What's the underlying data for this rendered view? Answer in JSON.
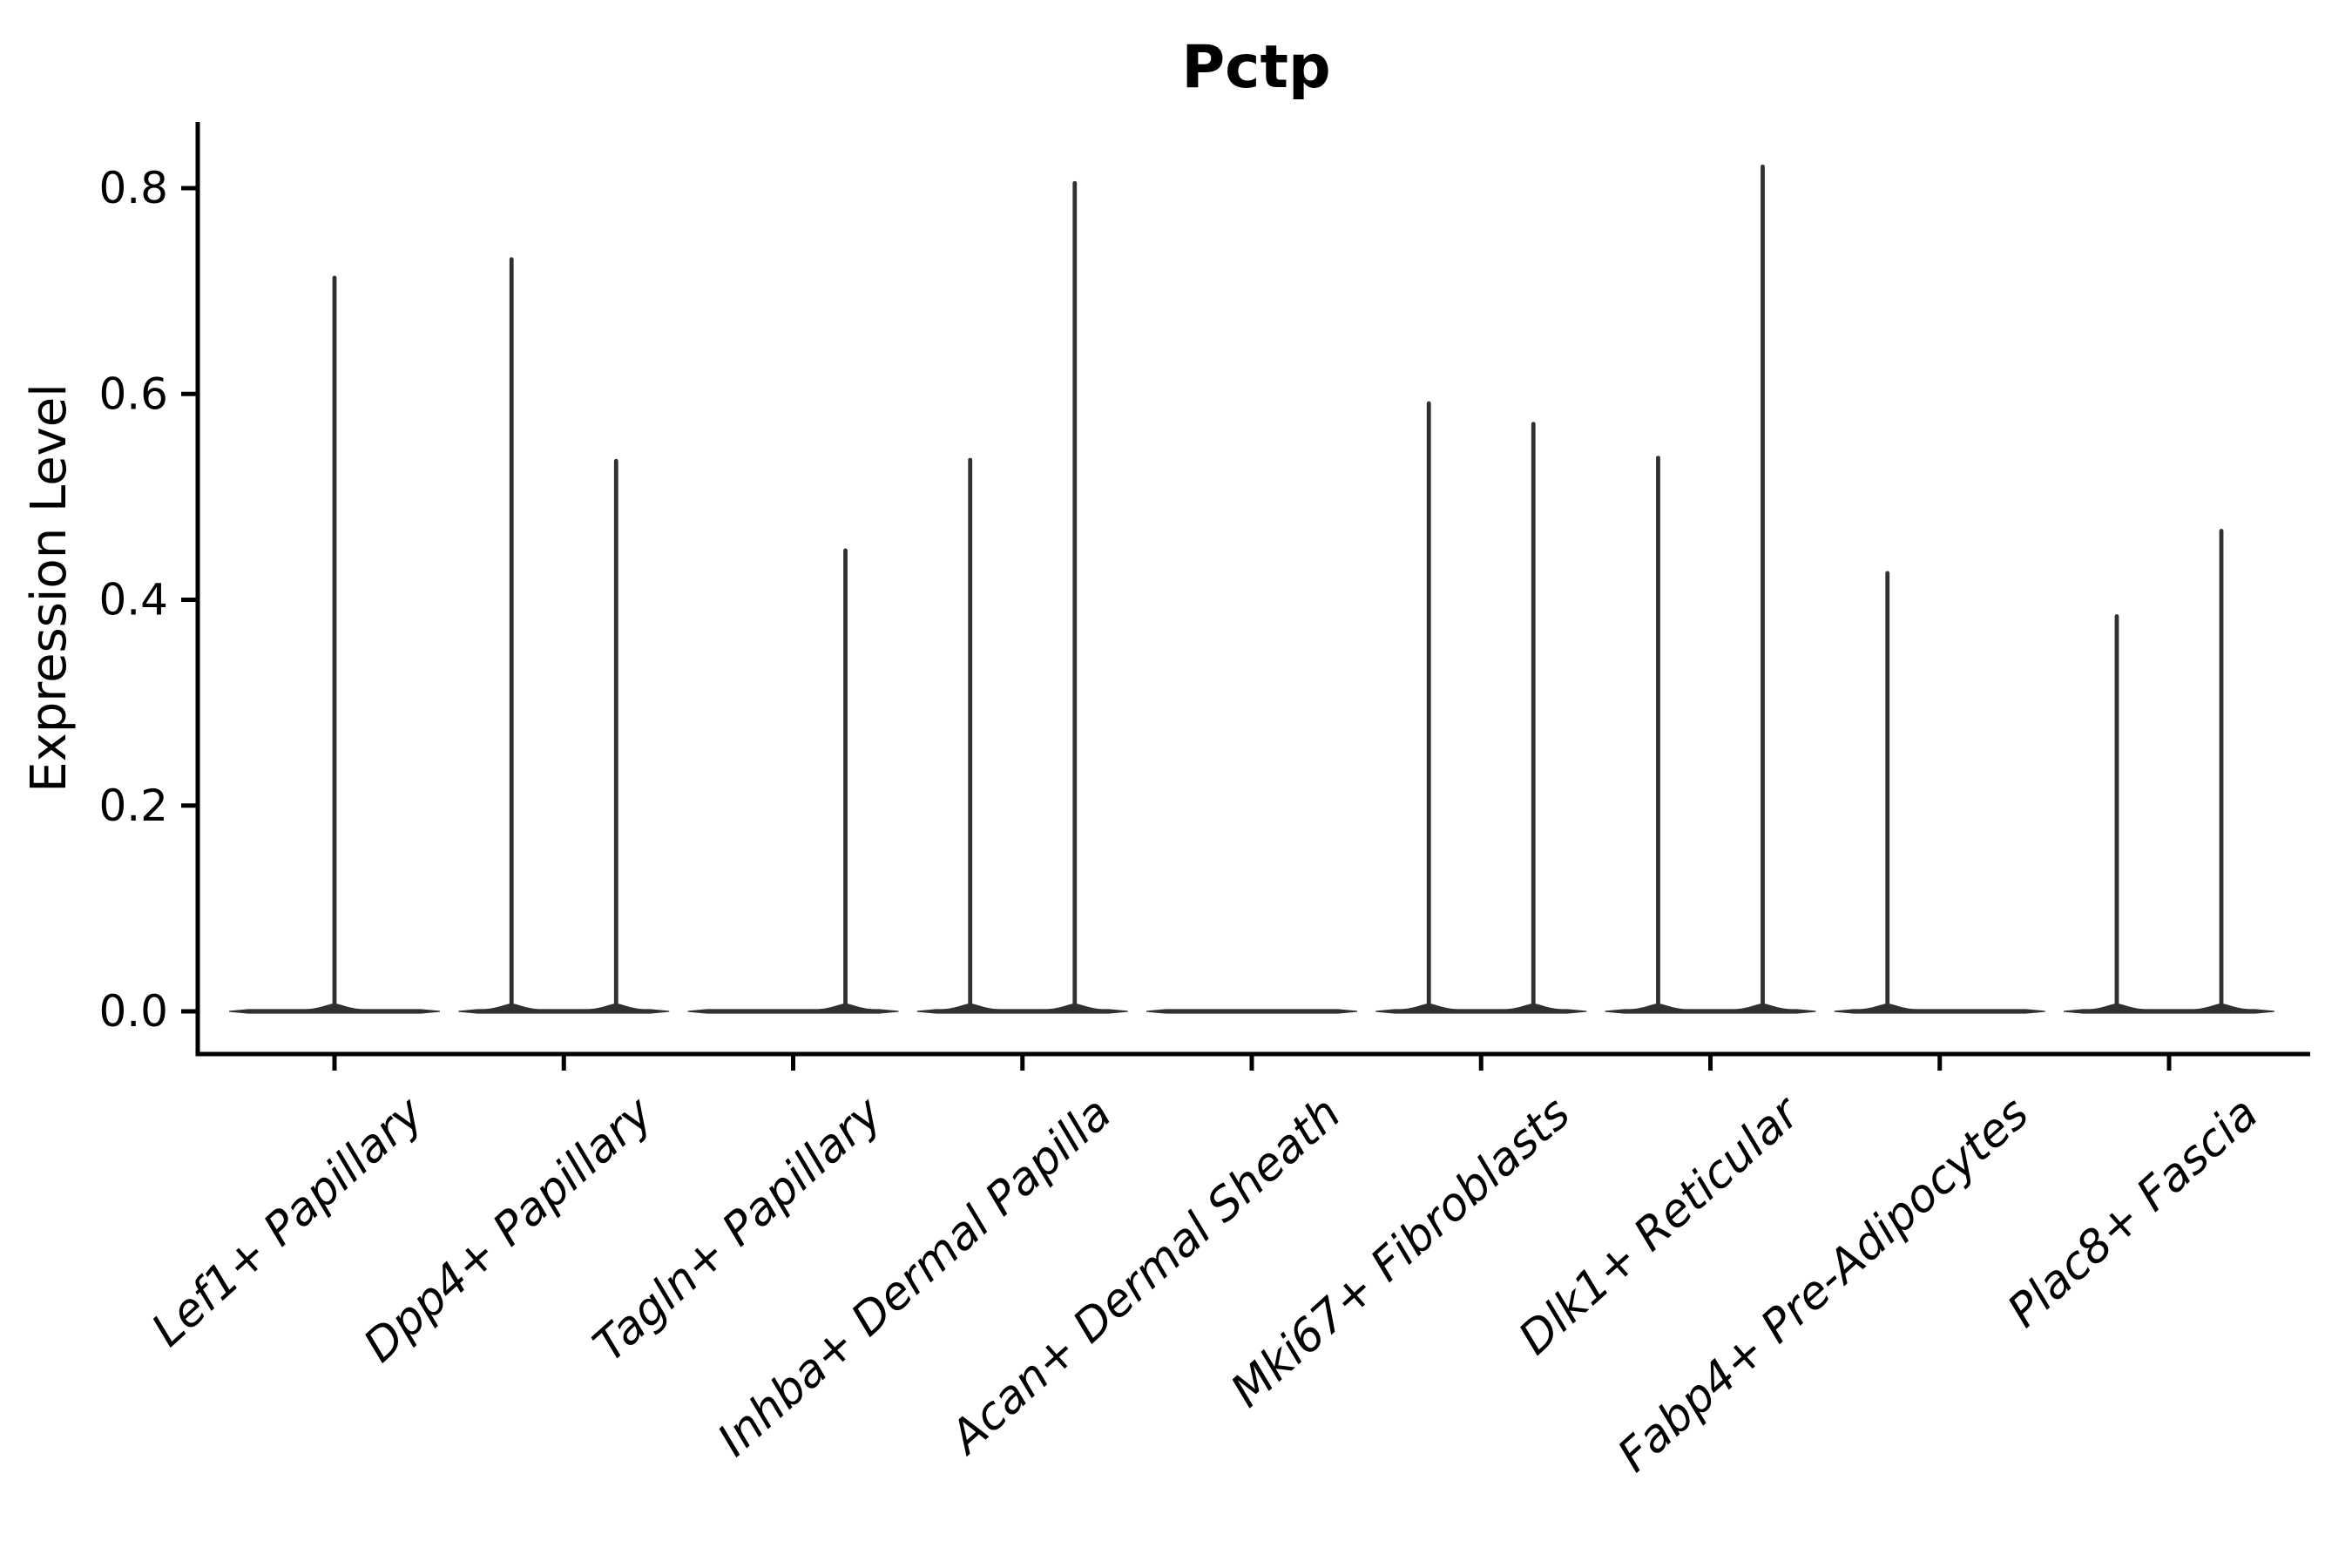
{
  "figure": {
    "background": "#ffffff"
  },
  "chart_data": {
    "type": "violin",
    "title": "Pctp",
    "xlabel": "",
    "ylabel": "Expression Level",
    "categories": [
      "Lef1+ Papillary",
      "Dpp4+ Papillary",
      "Tagln+ Papillary",
      "Inhba+ Dermal Papilla",
      "Acan+ Dermal Sheath",
      "Mki67+ Fibroblasts",
      "Dlk1+ Reticular",
      "Fabp4+ Pre-Adipocytes",
      "Plac8+ Fascia"
    ],
    "y_ticks": [
      0.0,
      0.2,
      0.4,
      0.6,
      0.8
    ],
    "ylim": [
      -0.033,
      0.864
    ],
    "grid": false,
    "legend": "none",
    "x_tick_rotation_deg": 42,
    "x_label_style": "italic",
    "violin_note": "Each category is a violin collapsed onto 0 (flat tapered base) with thin vertical spikes marking the sparse expression tail; offset_frac = horizontal offset of the spike from the category center as a fraction of category spacing; max = top value of the spike in Expression Level units.",
    "violins": [
      {
        "category": "Lef1+ Papillary",
        "baseline_value": 0.0,
        "spikes": [
          {
            "offset_frac": 0.0,
            "max": 0.715
          }
        ]
      },
      {
        "category": "Dpp4+ Papillary",
        "baseline_value": 0.0,
        "spikes": [
          {
            "offset_frac": -0.228,
            "max": 0.733
          },
          {
            "offset_frac": 0.228,
            "max": 0.537
          }
        ]
      },
      {
        "category": "Tagln+ Papillary",
        "baseline_value": 0.0,
        "spikes": [
          {
            "offset_frac": 0.228,
            "max": 0.45
          }
        ]
      },
      {
        "category": "Inhba+ Dermal Papilla",
        "baseline_value": 0.0,
        "spikes": [
          {
            "offset_frac": -0.228,
            "max": 0.538
          },
          {
            "offset_frac": 0.228,
            "max": 0.807
          }
        ]
      },
      {
        "category": "Acan+ Dermal Sheath",
        "baseline_value": 0.0,
        "spikes": []
      },
      {
        "category": "Mki67+ Fibroblasts",
        "baseline_value": 0.0,
        "spikes": [
          {
            "offset_frac": -0.228,
            "max": 0.593
          },
          {
            "offset_frac": 0.228,
            "max": 0.573
          }
        ]
      },
      {
        "category": "Dlk1+ Reticular",
        "baseline_value": 0.0,
        "spikes": [
          {
            "offset_frac": -0.228,
            "max": 0.54
          },
          {
            "offset_frac": 0.228,
            "max": 0.823
          }
        ]
      },
      {
        "category": "Fabp4+ Pre-Adipocytes",
        "baseline_value": 0.0,
        "spikes": [
          {
            "offset_frac": -0.228,
            "max": 0.428
          }
        ]
      },
      {
        "category": "Plac8+ Fascia",
        "baseline_value": 0.0,
        "spikes": [
          {
            "offset_frac": -0.228,
            "max": 0.386
          },
          {
            "offset_frac": 0.228,
            "max": 0.469
          }
        ]
      }
    ]
  },
  "style": {
    "ink": "#000000",
    "violin_color": "#303030",
    "background": "#ffffff"
  }
}
